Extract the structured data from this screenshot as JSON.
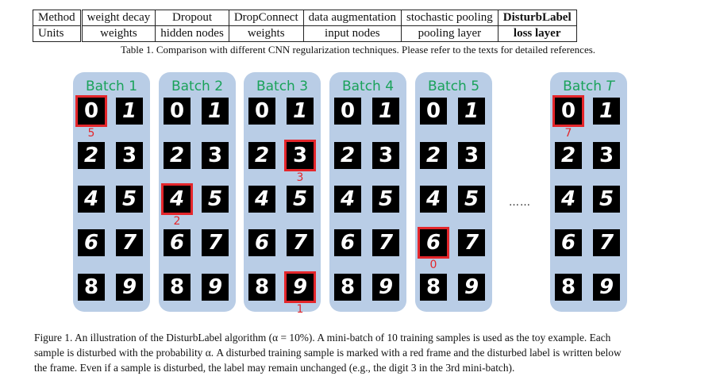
{
  "table": {
    "rows": [
      [
        "Method",
        "weight decay",
        "Dropout",
        "DropConnect",
        "data augmentation",
        "stochastic pooling",
        "DisturbLabel"
      ],
      [
        "Units",
        "weights",
        "hidden nodes",
        "weights",
        "input nodes",
        "pooling layer",
        "loss layer"
      ]
    ],
    "caption": "Table 1.  Comparison with different CNN regularization techniques. Please refer to the texts for detailed references."
  },
  "figure": {
    "batches": [
      {
        "title": "Batch 1",
        "italic_suffix": "",
        "disturbed": [
          {
            "digit": 0,
            "label": "5"
          }
        ]
      },
      {
        "title": "Batch 2",
        "italic_suffix": "",
        "disturbed": [
          {
            "digit": 4,
            "label": "2"
          }
        ]
      },
      {
        "title": "Batch 3",
        "italic_suffix": "",
        "disturbed": [
          {
            "digit": 3,
            "label": "3"
          },
          {
            "digit": 9,
            "label": "1"
          }
        ]
      },
      {
        "title": "Batch 4",
        "italic_suffix": "",
        "disturbed": []
      },
      {
        "title": "Batch 5",
        "italic_suffix": "",
        "disturbed": [
          {
            "digit": 6,
            "label": "0"
          }
        ]
      },
      {
        "title": "Batch ",
        "italic_suffix": "T",
        "disturbed": [
          {
            "digit": 0,
            "label": "7"
          }
        ]
      }
    ],
    "ellipsis": "……",
    "digit_rows": [
      [
        "0",
        "1"
      ],
      [
        "2",
        "3"
      ],
      [
        "4",
        "5"
      ],
      [
        "6",
        "7"
      ],
      [
        "8",
        "9"
      ]
    ],
    "colors": {
      "panel": "#b9cde6",
      "title": "#1aa25a",
      "highlight": "#e4262b"
    }
  },
  "figure_caption": {
    "line1": "Figure 1.  An illustration of the DisturbLabel algorithm (α = 10%). A mini-batch of 10 training samples is used as the toy example. Each",
    "line2": "sample is disturbed with the probability α. A disturbed training sample is marked with a red frame and the disturbed label is written below",
    "line3": "the frame. Even if a sample is disturbed, the label may remain unchanged (e.g., the digit 3 in the 3rd mini-batch)."
  }
}
